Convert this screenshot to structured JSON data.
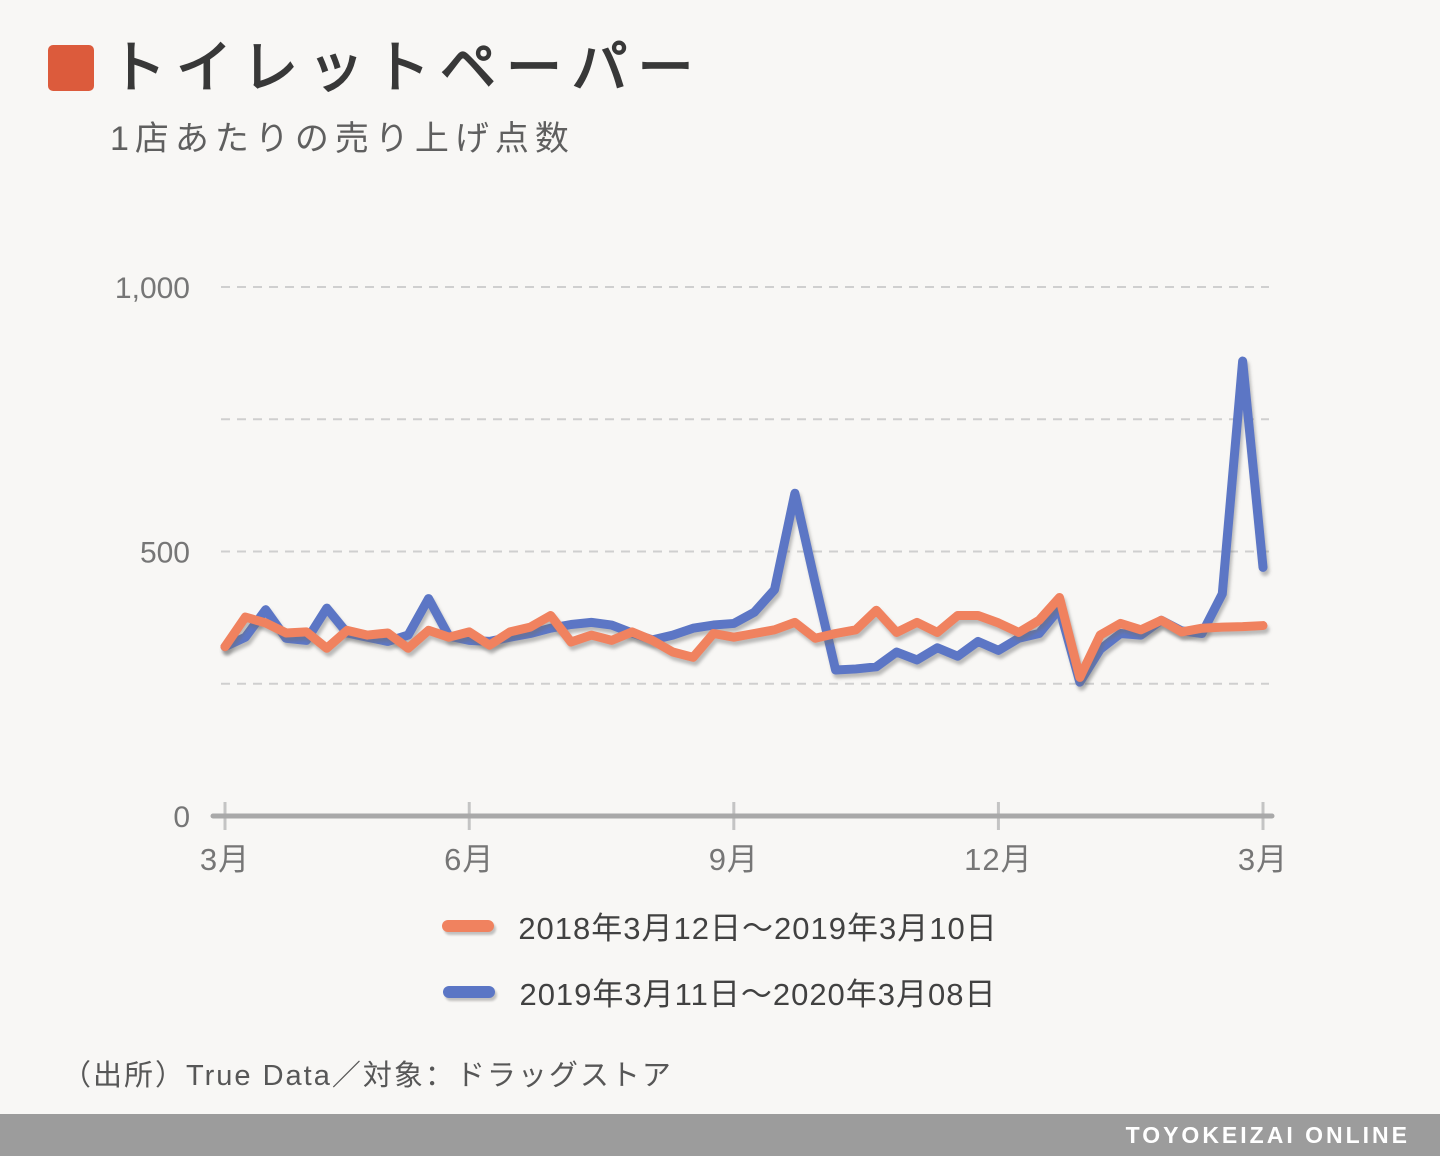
{
  "header": {
    "title": "トイレットペーパー",
    "subtitle": "1店あたりの売り上げ点数",
    "accent_color": "#dc5b3c"
  },
  "chart_data": {
    "type": "line",
    "title": "トイレットペーパー",
    "subtitle": "1店あたりの売り上げ点数",
    "ylim": [
      0,
      1000
    ],
    "y_ticks": [
      {
        "value": 0,
        "label": "0"
      },
      {
        "value": 500,
        "label": "500"
      },
      {
        "value": 1000,
        "label": "1,000"
      }
    ],
    "y_gridlines": [
      250,
      500,
      750,
      1000
    ],
    "grid_style": "dashed-horizontal",
    "x_tick_labels": [
      "3月",
      "6月",
      "9月",
      "12月",
      "3月"
    ],
    "x_tick_indices": [
      0,
      12,
      25,
      38,
      51
    ],
    "legend_position": "bottom",
    "series": [
      {
        "name": "2018年3月12日～2019年3月10日",
        "color": "#f0825f",
        "values": [
          320,
          376,
          365,
          346,
          348,
          317,
          351,
          342,
          346,
          317,
          351,
          338,
          348,
          323,
          348,
          357,
          379,
          329,
          342,
          332,
          348,
          332,
          310,
          300,
          345,
          338,
          345,
          352,
          366,
          336,
          345,
          352,
          389,
          347,
          366,
          347,
          379,
          379,
          365,
          347,
          370,
          413,
          262,
          342,
          364,
          352,
          370,
          348,
          355,
          357,
          358,
          360
        ]
      },
      {
        "name": "2019年3月11日～2020年3月08日",
        "color": "#5b76c5",
        "values": [
          320,
          338,
          390,
          336,
          332,
          393,
          346,
          338,
          330,
          342,
          411,
          340,
          332,
          330,
          338,
          345,
          355,
          362,
          366,
          361,
          346,
          333,
          342,
          355,
          361,
          364,
          385,
          428,
          610,
          440,
          276,
          278,
          282,
          310,
          295,
          318,
          302,
          330,
          313,
          336,
          345,
          392,
          253,
          315,
          345,
          342,
          370,
          350,
          345,
          420,
          860,
          470
        ]
      }
    ]
  },
  "footer": {
    "source": "（出所）True Data／対象：ドラッグストア"
  },
  "brand_bar": {
    "label": "TOYOKEIZAI ONLINE",
    "background": "#9c9c9c"
  }
}
